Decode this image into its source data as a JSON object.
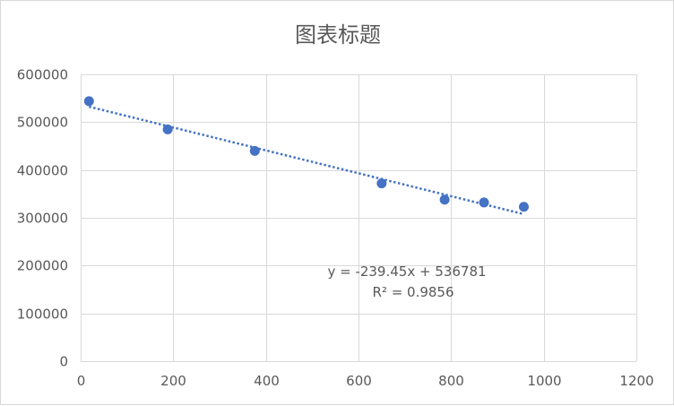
{
  "chart_data": {
    "type": "scatter",
    "title": "图表标题",
    "xlabel": "",
    "ylabel": "",
    "xlim": [
      0,
      1200
    ],
    "ylim": [
      0,
      600000
    ],
    "x_ticks": [
      0,
      200,
      400,
      600,
      800,
      1000,
      1200
    ],
    "y_ticks": [
      0,
      100000,
      200000,
      300000,
      400000,
      500000,
      600000
    ],
    "x_tick_labels": [
      "0",
      "200",
      "400",
      "600",
      "800",
      "1000",
      "1200"
    ],
    "y_tick_labels": [
      "0",
      "100000",
      "200000",
      "300000",
      "400000",
      "500000",
      "600000"
    ],
    "grid": true,
    "legend": "none",
    "series": [
      {
        "x": [
          18,
          188,
          376,
          650,
          786,
          871,
          957
        ],
        "y": [
          544000,
          485000,
          440000,
          372000,
          338000,
          332000,
          323000
        ],
        "color": "#4472c4"
      }
    ],
    "trendline": {
      "type": "linear",
      "slope": -239.45,
      "intercept": 536781,
      "x_range": [
        18,
        957
      ],
      "color": "#4472c4",
      "style": "dotted",
      "equation": "y = -239.45x + 536781",
      "r_squared": "R² = 0.9856"
    }
  }
}
